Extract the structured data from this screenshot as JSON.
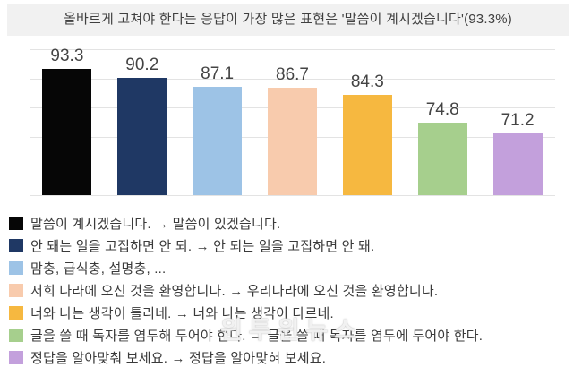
{
  "title": "올바르게 고쳐야 한다는 응답이 가장 많은 표현은 '말씀이 계시겠습니다'(93.3%)",
  "watermark": "윈투윈뉴스",
  "chart_data": {
    "type": "bar",
    "title": "올바르게 고쳐야 한다는 응답이 가장 많은 표현은 '말씀이 계시겠습니다'(93.3%)",
    "categories": [
      "말씀이 계시겠습니다. → 말씀이 있겠습니다.",
      "안 돼는 일을 고집하면 안 되. → 안 되는 일을 고집하면 안 돼.",
      "맘충, 급식충, 설명충, ...",
      "저희 나라에 오신 것을 환영합니다. → 우리나라에 오신 것을 환영합니다.",
      "너와 나는 생각이 틀리네. → 너와 나는 생각이 다르네.",
      "글을 쓸 때 독자를 염두해 두어야 한다. → 글을 쓸 때 독자를 염두에 두어야 한다.",
      "정답을 알아맞춰 보세요. → 정답을 알아맞혀 보세요."
    ],
    "values": [
      93.3,
      90.2,
      87.1,
      86.7,
      84.3,
      74.8,
      71.2
    ],
    "bar_colors": [
      "#060606",
      "#1f3864",
      "#9dc3e6",
      "#f8cbad",
      "#f6b840",
      "#a6cf8d",
      "#c3a0dc"
    ],
    "xlabel": "",
    "ylabel": "",
    "ylim": [
      50,
      100
    ],
    "grid": true,
    "grid_step": 10,
    "gridline_color": "#e3e3e3",
    "value_label_color": "#444444",
    "legend_position": "bottom",
    "unit": "%"
  },
  "legend": {
    "items": [
      {
        "color": "#060606",
        "label": "말씀이 계시겠습니다. → 말씀이 있겠습니다."
      },
      {
        "color": "#1f3864",
        "label": "안 돼는 일을 고집하면 안 되. → 안 되는 일을 고집하면 안 돼."
      },
      {
        "color": "#9dc3e6",
        "label": "맘충, 급식충, 설명충, ..."
      },
      {
        "color": "#f8cbad",
        "label": "저희 나라에 오신 것을 환영합니다. → 우리나라에 오신 것을 환영합니다."
      },
      {
        "color": "#f6b840",
        "label": "너와 나는 생각이 틀리네. → 너와 나는 생각이 다르네."
      },
      {
        "color": "#a6cf8d",
        "label": "글을 쓸 때 독자를 염두해 두어야 한다. → 글을 쓸 때 독자를 염두에 두어야 한다."
      },
      {
        "color": "#c3a0dc",
        "label": "정답을 알아맞춰 보세요. → 정답을 알아맞혀 보세요."
      }
    ]
  }
}
